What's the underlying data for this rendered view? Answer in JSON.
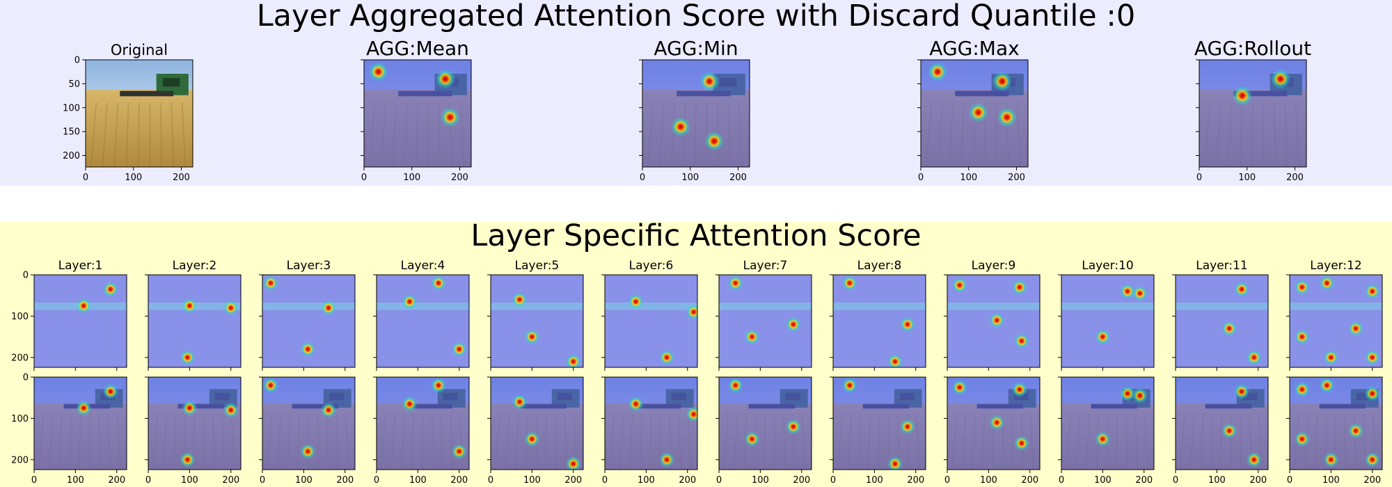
{
  "colors": {
    "top_band": "#ececff",
    "bottom_band": "#ffffcc",
    "heat_base": "#5a63e6",
    "field_light": "#d6b66a",
    "field_dark": "#b08a3e",
    "sky": "#a9c6e6"
  },
  "header": {
    "top_title": "Layer Aggregated Attention Score with Discard Quantile :0",
    "bottom_title": "Layer Specific Attention Score"
  },
  "chart_data": [
    {
      "type": "heatmap",
      "group": "aggregated",
      "panels": [
        {
          "title": "Original",
          "content": "image"
        },
        {
          "title": "AGG:Mean",
          "content": "heatmap-overlay",
          "hotspots": [
            [
              30,
              25
            ],
            [
              170,
              40
            ],
            [
              180,
              120
            ]
          ]
        },
        {
          "title": "AGG:Min",
          "content": "heatmap-overlay",
          "hotspots": [
            [
              140,
              45
            ],
            [
              80,
              140
            ],
            [
              150,
              170
            ]
          ]
        },
        {
          "title": "AGG:Max",
          "content": "heatmap-overlay",
          "hotspots": [
            [
              35,
              25
            ],
            [
              170,
              45
            ],
            [
              180,
              120
            ],
            [
              120,
              110
            ]
          ]
        },
        {
          "title": "AGG:Rollout",
          "content": "heatmap-overlay",
          "hotspots": [
            [
              170,
              40
            ],
            [
              90,
              75
            ]
          ]
        }
      ],
      "x_ticks": [
        0,
        100,
        200
      ],
      "y_ticks": [
        0,
        50,
        100,
        150,
        200
      ],
      "xlim": [
        0,
        224
      ],
      "ylim": [
        224,
        0
      ]
    },
    {
      "type": "heatmap",
      "group": "layer-specific",
      "panels": [
        {
          "title": "Layer:1",
          "hotspots": [
            [
              185,
              35
            ],
            [
              120,
              75
            ]
          ]
        },
        {
          "title": "Layer:2",
          "hotspots": [
            [
              100,
              75
            ],
            [
              95,
              200
            ],
            [
              200,
              80
            ]
          ]
        },
        {
          "title": "Layer:3",
          "hotspots": [
            [
              20,
              20
            ],
            [
              160,
              80
            ],
            [
              110,
              180
            ]
          ]
        },
        {
          "title": "Layer:4",
          "hotspots": [
            [
              80,
              65
            ],
            [
              150,
              20
            ],
            [
              200,
              180
            ]
          ]
        },
        {
          "title": "Layer:5",
          "hotspots": [
            [
              70,
              60
            ],
            [
              100,
              150
            ],
            [
              200,
              210
            ]
          ]
        },
        {
          "title": "Layer:6",
          "hotspots": [
            [
              75,
              65
            ],
            [
              215,
              90
            ],
            [
              150,
              200
            ]
          ]
        },
        {
          "title": "Layer:7",
          "hotspots": [
            [
              40,
              20
            ],
            [
              180,
              120
            ],
            [
              80,
              150
            ]
          ]
        },
        {
          "title": "Layer:8",
          "hotspots": [
            [
              40,
              20
            ],
            [
              180,
              120
            ],
            [
              150,
              210
            ]
          ]
        },
        {
          "title": "Layer:9",
          "hotspots": [
            [
              30,
              25
            ],
            [
              175,
              30
            ],
            [
              120,
              110
            ],
            [
              180,
              160
            ]
          ]
        },
        {
          "title": "Layer:10",
          "hotspots": [
            [
              160,
              40
            ],
            [
              190,
              45
            ],
            [
              100,
              150
            ]
          ]
        },
        {
          "title": "Layer:11",
          "hotspots": [
            [
              160,
              35
            ],
            [
              130,
              130
            ],
            [
              190,
              200
            ]
          ]
        },
        {
          "title": "Layer:12",
          "hotspots": [
            [
              30,
              30
            ],
            [
              90,
              20
            ],
            [
              200,
              40
            ],
            [
              30,
              150
            ],
            [
              160,
              130
            ],
            [
              200,
              200
            ],
            [
              100,
              200
            ]
          ]
        }
      ],
      "x_ticks": [
        0,
        100,
        200
      ],
      "y_ticks": [
        0,
        100,
        200
      ],
      "xlim": [
        0,
        224
      ],
      "ylim": [
        224,
        0
      ]
    }
  ]
}
